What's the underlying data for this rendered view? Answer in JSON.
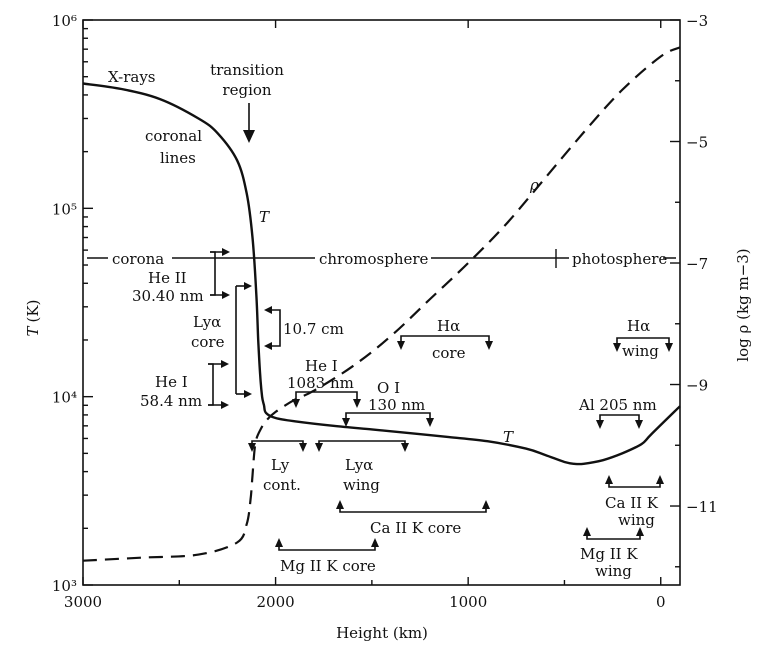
{
  "chart_data": {
    "type": "line",
    "xlabel": "Height (km)",
    "ylabel_left": "T (K)",
    "ylabel_left_unit": "(K)",
    "ylabel_right": "log ρ (kg m−3)",
    "x_ticks": [
      3000,
      2000,
      1000,
      0
    ],
    "x_range": [
      3000,
      -100
    ],
    "y_left_scale": "log",
    "y_left_range": [
      1000,
      1000000
    ],
    "y_left_ticks": [
      "10³",
      "10⁴",
      "10⁵",
      "10⁶"
    ],
    "y_left_tick_values": [
      1000,
      10000,
      100000,
      1000000
    ],
    "y_right_range": [
      -12.3,
      -3
    ],
    "y_right_ticks": [
      -3,
      -5,
      -7,
      -9,
      -11
    ],
    "y_right_tick_labels": [
      "−3",
      "−5",
      "−7",
      "−9",
      "−11"
    ],
    "grid": false,
    "series": [
      {
        "name": "T",
        "axis": "left",
        "style": "solid",
        "x": [
          3000,
          2800,
          2600,
          2400,
          2300,
          2200,
          2150,
          2120,
          2100,
          2090,
          2080,
          2070,
          2060,
          2050,
          2000,
          1900,
          1700,
          1500,
          1300,
          1100,
          900,
          700,
          600,
          500,
          450,
          400,
          300,
          200,
          100,
          50,
          -100
        ],
        "y": [
          460000,
          430000,
          380000,
          300000,
          250000,
          180000,
          120000,
          70000,
          35000,
          20000,
          13000,
          10000,
          9000,
          8200,
          7700,
          7400,
          7000,
          6700,
          6400,
          6100,
          5800,
          5300,
          4900,
          4500,
          4400,
          4400,
          4600,
          5000,
          5600,
          6300,
          8900
        ]
      },
      {
        "name": "ρ",
        "axis": "right",
        "style": "dashed",
        "x": [
          3000,
          2700,
          2400,
          2200,
          2150,
          2130,
          2120,
          2110,
          2100,
          2080,
          2050,
          2000,
          1900,
          1800,
          1600,
          1400,
          1200,
          1000,
          800,
          600,
          400,
          200,
          0,
          -100
        ],
        "y": [
          -11.9,
          -11.85,
          -11.8,
          -11.6,
          -11.3,
          -10.9,
          -10.5,
          -10.1,
          -9.9,
          -9.75,
          -9.6,
          -9.45,
          -9.25,
          -9.1,
          -8.7,
          -8.2,
          -7.6,
          -7.0,
          -6.35,
          -5.6,
          -4.85,
          -4.15,
          -3.6,
          -3.45
        ]
      }
    ],
    "annotations": {
      "x_rays": "X-rays",
      "transition_region_1": "transition",
      "transition_region_2": "region",
      "coronal_lines_1": "coronal",
      "coronal_lines_2": "lines",
      "t_label_upper": "T",
      "t_label_lower": "T",
      "rho_label": "ρ",
      "corona": "corona",
      "chromosphere": "chromosphere",
      "photosphere": "photosphere",
      "he2_1": "He II",
      "he2_2": "30.40 nm",
      "lya_core_1": "Lyα",
      "lya_core_2": "core",
      "cm_107": "10.7 cm",
      "he1_584_1": "He I",
      "he1_584_2": "58.4 nm",
      "he1_1083_1": "He I",
      "he1_1083_2": "1083 nm",
      "o1_1": "O I",
      "o1_2": "130 nm",
      "halpha_core_1": "Hα",
      "halpha_core_2": "core",
      "halpha_wing_1": "Hα",
      "halpha_wing_2": "wing",
      "al_205": "Al 205 nm",
      "ly_cont_1": "Ly",
      "ly_cont_2": "cont.",
      "lya_wing_1": "Lyα",
      "lya_wing_2": "wing",
      "ca2k_core": "Ca II K core",
      "ca2k_wing_1": "Ca II K",
      "ca2k_wing_2": "wing",
      "mg2k_core": "Mg II K core",
      "mg2k_wing_1": "Mg II K",
      "mg2k_wing_2": "wing"
    }
  }
}
